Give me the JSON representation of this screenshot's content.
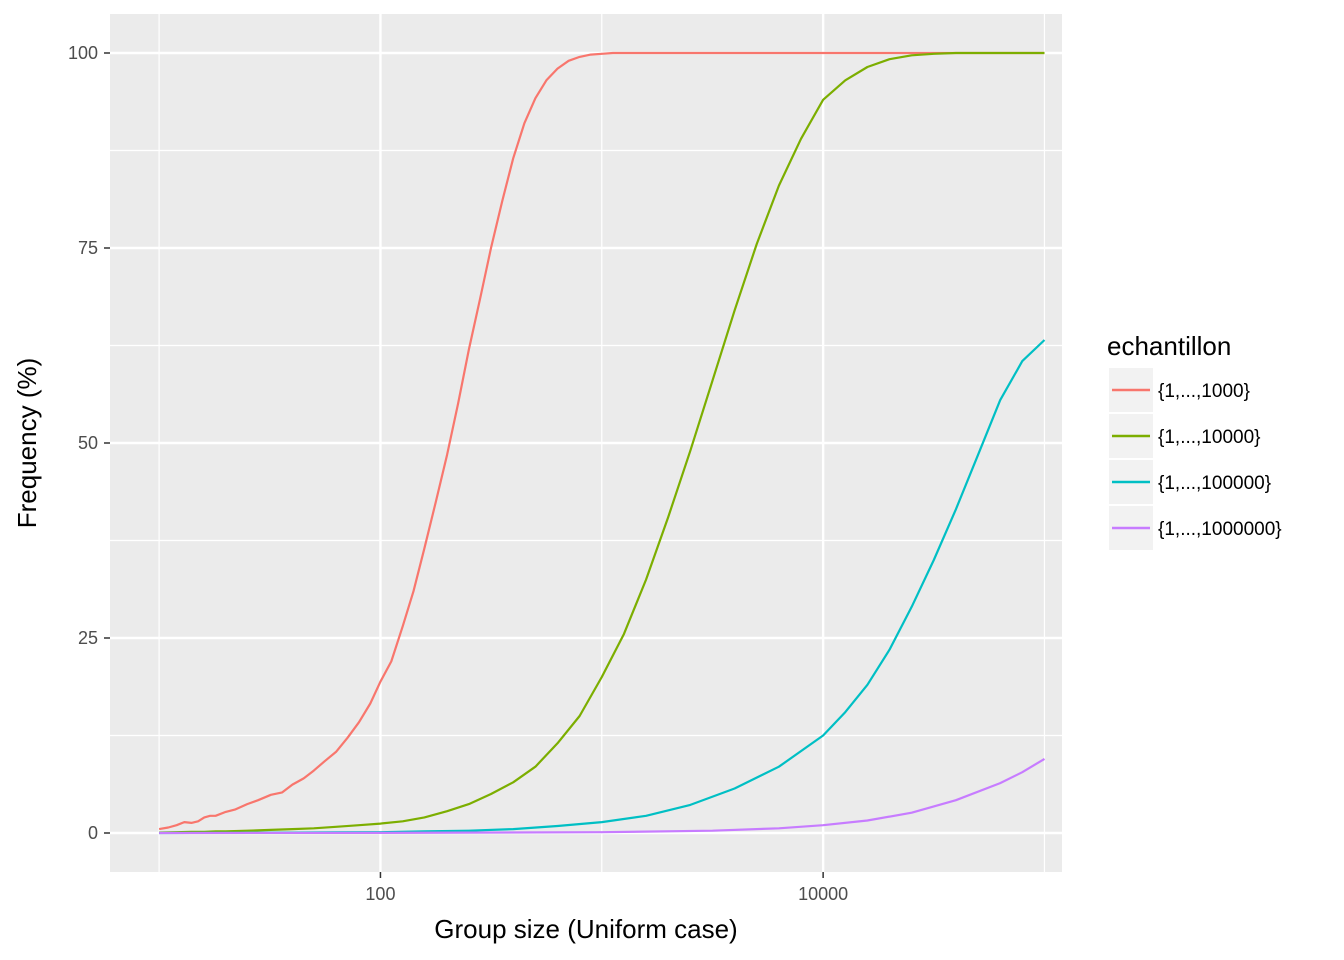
{
  "chart_data": {
    "type": "line",
    "xscale": "log10",
    "xlabel": "Group size (Uniform case)",
    "ylabel": "Frequency (%)",
    "xlim": [
      6,
      120000
    ],
    "ylim": [
      -5,
      105
    ],
    "xticks": [
      100,
      10000
    ],
    "xtick_labels": [
      "100",
      "10000"
    ],
    "xminor_ticks": [
      10,
      1000,
      100000
    ],
    "yticks": [
      0,
      25,
      50,
      75,
      100
    ],
    "ytick_labels": [
      "0",
      "25",
      "50",
      "75",
      "100"
    ],
    "grid": true,
    "legend": {
      "title": "echantillon",
      "position": "right"
    },
    "series": [
      {
        "name": "{1,...,1000}",
        "color": "#F8766D",
        "x": [
          10,
          11,
          12,
          13,
          14,
          15,
          16,
          17,
          18,
          20,
          22,
          25,
          28,
          32,
          36,
          40,
          45,
          50,
          56,
          63,
          71,
          80,
          90,
          100,
          112,
          126,
          141,
          158,
          178,
          200,
          224,
          251,
          282,
          316,
          355,
          398,
          447,
          501,
          562,
          631,
          708,
          794,
          891,
          1000,
          1122,
          1259,
          1413,
          1585,
          1778,
          1995,
          2239,
          2512,
          2818,
          3162,
          3548,
          3981,
          5012,
          6310,
          7943,
          10000,
          15849,
          25119,
          39811,
          63096,
          100000
        ],
        "y": [
          0.5,
          0.7,
          1.0,
          1.4,
          1.3,
          1.5,
          2.0,
          2.2,
          2.2,
          2.7,
          3.0,
          3.7,
          4.2,
          4.9,
          5.2,
          6.2,
          7.0,
          8.0,
          9.2,
          10.4,
          12.2,
          14.2,
          16.6,
          19.4,
          22.0,
          26.5,
          31.0,
          36.5,
          42.5,
          48.5,
          55.0,
          62.0,
          68.5,
          75.0,
          81.0,
          86.5,
          91.0,
          94.2,
          96.5,
          98.0,
          99.0,
          99.5,
          99.8,
          99.9,
          100,
          100,
          100,
          100,
          100,
          100,
          100,
          100,
          100,
          100,
          100,
          100,
          100,
          100,
          100,
          100,
          100,
          100,
          100,
          100,
          100
        ]
      },
      {
        "name": "{1,...,10000}",
        "color": "#7CAE00",
        "x": [
          10,
          12,
          14,
          16,
          18,
          20,
          25,
          32,
          40,
          50,
          63,
          80,
          100,
          126,
          158,
          200,
          251,
          316,
          398,
          501,
          631,
          794,
          1000,
          1259,
          1585,
          1995,
          2512,
          3162,
          3981,
          5012,
          6310,
          7943,
          10000,
          12589,
          15849,
          19953,
          25119,
          31623,
          39811,
          50119,
          63096,
          79433,
          100000
        ],
        "y": [
          0.05,
          0.1,
          0.15,
          0.15,
          0.2,
          0.2,
          0.3,
          0.4,
          0.5,
          0.6,
          0.8,
          1.0,
          1.2,
          1.5,
          2.0,
          2.8,
          3.7,
          5.0,
          6.5,
          8.5,
          11.5,
          15.0,
          20.0,
          25.5,
          32.5,
          40.5,
          49.0,
          58.0,
          67.0,
          75.5,
          83.0,
          89.0,
          94.0,
          96.5,
          98.2,
          99.2,
          99.7,
          99.9,
          100,
          100,
          100,
          100,
          100
        ]
      },
      {
        "name": "{1,...,100000}",
        "color": "#00BFC4",
        "x": [
          10,
          20,
          40,
          63,
          100,
          158,
          251,
          398,
          631,
          1000,
          1585,
          2512,
          3981,
          6310,
          10000,
          12589,
          15849,
          19953,
          25119,
          31623,
          39811,
          50119,
          63096,
          79433,
          100000
        ],
        "y": [
          0.0,
          0.02,
          0.05,
          0.08,
          0.1,
          0.2,
          0.3,
          0.5,
          0.9,
          1.4,
          2.2,
          3.6,
          5.7,
          8.5,
          12.5,
          15.5,
          19.0,
          23.5,
          29.0,
          35.0,
          41.5,
          48.5,
          55.5,
          60.5,
          63.2
        ]
      },
      {
        "name": "{1,...,1000000}",
        "color": "#C77CFF",
        "x": [
          10,
          100,
          1000,
          3162,
          6310,
          10000,
          15849,
          25119,
          39811,
          63096,
          79433,
          100000
        ],
        "y": [
          0.0,
          0.01,
          0.1,
          0.3,
          0.6,
          1.0,
          1.6,
          2.6,
          4.2,
          6.4,
          7.8,
          9.5
        ]
      }
    ]
  }
}
